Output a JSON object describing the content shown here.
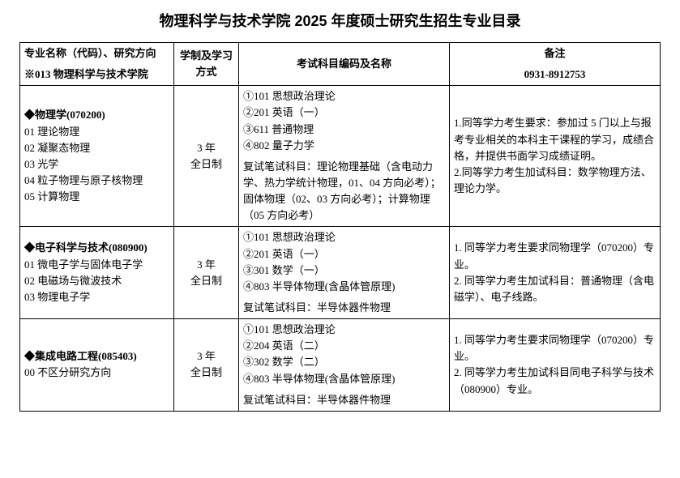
{
  "title": "物理科学与技术学院 2025 年度硕士研究生招生专业目录",
  "header": {
    "col1": "专业名称（代码）、研究方向",
    "col2": "学制及学习方式",
    "col3": "考试科目编码及名称",
    "col4": "备注"
  },
  "dept": "※013 物理科学与技术学院",
  "phone": "0931-8912753",
  "rows": [
    {
      "major": "◆物理学(070200)",
      "directions": "01 理论物理\n02 凝聚态物理\n03 光学\n04 粒子物理与原子核物理\n05 计算物理",
      "study": "3 年\n全日制",
      "exams_top": "①101 思想政治理论\n②201 英语（一）\n③611 普通物理\n④802 量子力学",
      "exams_bot": "复试笔试科目：理论物理基础（含电动力学、热力学统计物理，01、04 方向必考）；固体物理（02、03 方向必考）；计算物理（05 方向必考）",
      "remark": "1.同等学力考生要求：参加过 5 门以上与报考专业相关的本科主干课程的学习，成绩合格，并提供书面学习成绩证明。\n2.同等学力考生加试科目：数学物理方法、理论力学。"
    },
    {
      "major": "◆电子科学与技术(080900)",
      "directions": "01 微电子学与固体电子学\n02 电磁场与微波技术\n03 物理电子学",
      "study": "3 年\n全日制",
      "exams_top": "①101 思想政治理论\n②201 英语（一）\n③301 数学（一）\n④803 半导体物理(含晶体管原理)",
      "exams_bot": "复试笔试科目：半导体器件物理",
      "remark": "1. 同等学力考生要求同物理学（070200）专业。\n2. 同等学力考生加试科目：普通物理（含电磁学）、电子线路。"
    },
    {
      "major": "◆集成电路工程(085403)",
      "directions": "00 不区分研究方向",
      "study": "3 年\n全日制",
      "exams_top": "①101 思想政治理论\n②204 英语（二）\n③302 数学（二）\n④803 半导体物理(含晶体管原理)",
      "exams_bot": "复试笔试科目：半导体器件物理",
      "remark": "1. 同等学力考生要求同物理学（070200）专业。\n2. 同等学力考生加试科目同电子科学与技术（080900）专业。"
    }
  ]
}
